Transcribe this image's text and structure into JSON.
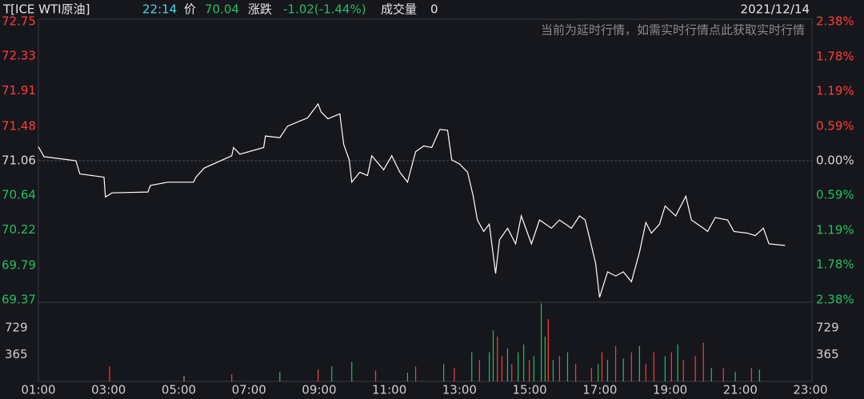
{
  "header": {
    "symbol": "T[ICE WTI原油]",
    "time": "22:14",
    "price_label": "价",
    "price": "70.04",
    "change_label": "涨跌",
    "change": "-1.02(-1.44%)",
    "volume_label": "成交量",
    "volume": "0",
    "date": "2021/12/14",
    "notice": "当前为延时行情，如需实时行情点此获取实时行情"
  },
  "chart_data": [
    {
      "type": "line",
      "color": "#ffffff",
      "x": [
        1.0,
        1.16,
        2.07,
        2.18,
        2.87,
        2.91,
        3.1,
        4.12,
        4.19,
        4.69,
        5.42,
        5.49,
        5.72,
        6.51,
        6.56,
        6.74,
        7.42,
        7.47,
        7.88,
        8.1,
        8.44,
        8.67,
        8.97,
        9.06,
        9.25,
        9.59,
        9.7,
        9.86,
        9.93,
        10.16,
        10.38,
        10.5,
        10.84,
        11.07,
        11.3,
        11.52,
        11.75,
        11.98,
        12.21,
        12.44,
        12.66,
        12.78,
        13.0,
        13.23,
        13.39,
        13.51,
        13.69,
        13.85,
        14.03,
        14.14,
        14.37,
        14.6,
        14.76,
        15.05,
        15.28,
        15.62,
        15.85,
        16.19,
        16.42,
        16.58,
        16.72,
        16.88,
        16.99,
        17.22,
        17.45,
        17.67,
        17.9,
        18.13,
        18.31,
        18.47,
        18.7,
        18.86,
        19.16,
        19.45,
        19.61,
        19.95,
        20.07,
        20.29,
        20.64,
        20.82,
        21.21,
        21.43,
        21.66,
        21.82,
        22.28
      ],
      "values": [
        71.23,
        71.11,
        71.06,
        70.9,
        70.86,
        70.62,
        70.67,
        70.68,
        70.76,
        70.8,
        70.8,
        70.86,
        70.97,
        71.12,
        71.22,
        71.14,
        71.22,
        71.36,
        71.34,
        71.48,
        71.54,
        71.58,
        71.75,
        71.65,
        71.57,
        71.63,
        71.26,
        71.07,
        70.8,
        70.92,
        70.88,
        71.12,
        70.95,
        71.12,
        70.92,
        70.8,
        71.17,
        71.24,
        71.22,
        71.44,
        71.43,
        71.07,
        71.02,
        70.92,
        70.63,
        70.34,
        70.2,
        70.29,
        69.69,
        70.1,
        70.24,
        70.05,
        70.39,
        70.05,
        70.34,
        70.24,
        70.34,
        70.24,
        70.39,
        70.34,
        70.1,
        69.81,
        69.4,
        69.71,
        69.66,
        69.71,
        69.59,
        69.95,
        70.31,
        70.18,
        70.29,
        70.51,
        70.39,
        70.63,
        70.34,
        70.24,
        70.2,
        70.37,
        70.34,
        70.2,
        70.18,
        70.15,
        70.24,
        70.05,
        70.03
      ],
      "xlim": [
        1,
        23
      ],
      "xticks": [
        {
          "value": 1,
          "label": "01:00"
        },
        {
          "value": 3,
          "label": "03:00"
        },
        {
          "value": 5,
          "label": "05:00"
        },
        {
          "value": 7,
          "label": "07:00"
        },
        {
          "value": 9,
          "label": "09:00"
        },
        {
          "value": 11,
          "label": "11:00"
        },
        {
          "value": 13,
          "label": "13:00"
        },
        {
          "value": 15,
          "label": "15:00"
        },
        {
          "value": 17,
          "label": "17:00"
        },
        {
          "value": 19,
          "label": "19:00"
        },
        {
          "value": 21,
          "label": "21:00"
        },
        {
          "value": 23,
          "label": "23:00"
        }
      ],
      "ylim": [
        69.37,
        72.75
      ],
      "yticks": [
        72.75,
        72.33,
        71.91,
        71.48,
        71.06,
        70.64,
        70.22,
        69.79,
        69.37
      ],
      "y2lim": [
        -2.38,
        2.38
      ],
      "y2ticks": [
        {
          "value": 2.38,
          "label": "2.38%"
        },
        {
          "value": 1.78,
          "label": "1.78%"
        },
        {
          "value": 1.19,
          "label": "1.19%"
        },
        {
          "value": 0.59,
          "label": "0.59%"
        },
        {
          "value": 0,
          "label": "0.00%"
        },
        {
          "value": -0.59,
          "label": "0.59%"
        },
        {
          "value": -1.19,
          "label": "1.19%"
        },
        {
          "value": -1.78,
          "label": "1.78%"
        },
        {
          "value": -2.38,
          "label": "2.38%"
        }
      ],
      "up_color": "#ff3b3b",
      "down_color": "#20c060",
      "flat_color": "#d8d8d8"
    },
    {
      "type": "bar",
      "x": [
        3.03,
        5.15,
        6.51,
        7.88,
        8.97,
        9.36,
        9.93,
        10.61,
        11.52,
        11.75,
        12.55,
        12.85,
        13.35,
        13.57,
        13.85,
        13.96,
        14.08,
        14.21,
        14.37,
        14.49,
        14.67,
        14.83,
        14.99,
        15.12,
        15.33,
        15.44,
        15.53,
        15.67,
        15.85,
        16.08,
        16.31,
        16.76,
        16.95,
        17.06,
        17.22,
        17.45,
        17.67,
        17.9,
        18.13,
        18.31,
        18.54,
        18.86,
        19.04,
        19.22,
        19.38,
        19.72,
        19.95,
        20.18,
        20.52,
        20.86,
        21.32,
        21.55
      ],
      "values": [
        204,
        75,
        97,
        129,
        161,
        204,
        268,
        150,
        118,
        204,
        236,
        183,
        397,
        290,
        397,
        698,
        612,
        344,
        451,
        236,
        397,
        505,
        290,
        344,
        1063,
        612,
        849,
        290,
        344,
        397,
        236,
        183,
        236,
        397,
        290,
        483,
        311,
        397,
        483,
        236,
        397,
        344,
        397,
        505,
        290,
        344,
        526,
        183,
        183,
        129,
        183,
        161
      ],
      "colors": [
        "#ff3b3b",
        "#9a9a9a",
        "#ff3b3b",
        "#20c060",
        "#ff3b3b",
        "#20c060",
        "#20c060",
        "#ff3b3b",
        "#20c060",
        "#ff3b3b",
        "#20c060",
        "#ff3b3b",
        "#20c060",
        "#ff3b3b",
        "#20c060",
        "#20c060",
        "#ff3b3b",
        "#ff3b3b",
        "#20c060",
        "#ff3b3b",
        "#20c060",
        "#20c060",
        "#ff3b3b",
        "#20c060",
        "#20c060",
        "#20c060",
        "#ff3b3b",
        "#20c060",
        "#ff3b3b",
        "#20c060",
        "#ff3b3b",
        "#ff3b3b",
        "#20c060",
        "#ff3b3b",
        "#20c060",
        "#ff3b3b",
        "#20c060",
        "#ff3b3b",
        "#20c060",
        "#ff3b3b",
        "#ff3b3b",
        "#20c060",
        "#ff3b3b",
        "#20c060",
        "#ff3b3b",
        "#ff3b3b",
        "#ff3b3b",
        "#20c060",
        "#ff3b3b",
        "#20c060",
        "#ff3b3b",
        "#20c060"
      ],
      "xlim": [
        1,
        23
      ],
      "ylim": [
        0,
        1080
      ],
      "yticks": [
        729,
        365
      ]
    }
  ]
}
